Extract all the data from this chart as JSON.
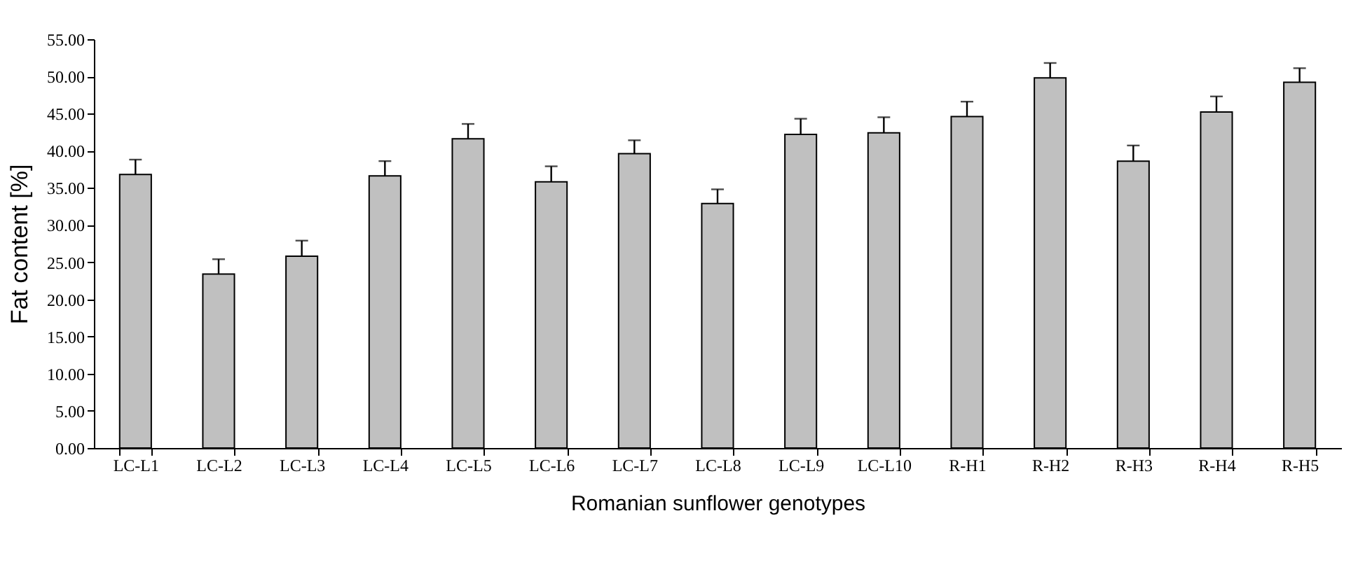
{
  "chart_data": {
    "type": "bar",
    "xlabel": "Romanian sunflower genotypes",
    "ylabel": "Fat content [%]",
    "categories": [
      "LC-L1",
      "LC-L2",
      "LC-L3",
      "LC-L4",
      "LC-L5",
      "LC-L6",
      "LC-L7",
      "LC-L8",
      "LC-L9",
      "LC-L10",
      "R-H1",
      "R-H2",
      "R-H3",
      "R-H4",
      "R-H5"
    ],
    "values": [
      36.8,
      23.4,
      25.8,
      36.6,
      41.6,
      35.8,
      39.6,
      32.9,
      42.2,
      42.4,
      44.6,
      49.8,
      38.6,
      45.2,
      49.2
    ],
    "errors": [
      [
        36.8,
        38.8
      ],
      [
        23.4,
        25.4
      ],
      [
        25.8,
        27.9
      ],
      [
        36.6,
        38.6
      ],
      [
        41.6,
        43.6
      ],
      [
        35.8,
        37.9
      ],
      [
        39.6,
        41.4
      ],
      [
        32.9,
        34.8
      ],
      [
        42.2,
        44.3
      ],
      [
        42.4,
        44.5
      ],
      [
        44.6,
        46.6
      ],
      [
        49.8,
        51.8
      ],
      [
        38.6,
        40.7
      ],
      [
        45.2,
        47.3
      ],
      [
        49.2,
        51.1
      ]
    ],
    "color": "#c0c0c0",
    "ylim": [
      0,
      55
    ],
    "yticks": [
      {
        "value": 0,
        "label": "0.00"
      },
      {
        "value": 5,
        "label": "5.00"
      },
      {
        "value": 10,
        "label": "10.00"
      },
      {
        "value": 15,
        "label": "15.00"
      },
      {
        "value": 20,
        "label": "20.00"
      },
      {
        "value": 25,
        "label": "25.00"
      },
      {
        "value": 30,
        "label": "30.00"
      },
      {
        "value": 35,
        "label": "35.00"
      },
      {
        "value": 40,
        "label": "40.00"
      },
      {
        "value": 45,
        "label": "45.00"
      },
      {
        "value": 50,
        "label": "50.00"
      },
      {
        "value": 55,
        "label": "55.00"
      }
    ],
    "grid": false
  }
}
